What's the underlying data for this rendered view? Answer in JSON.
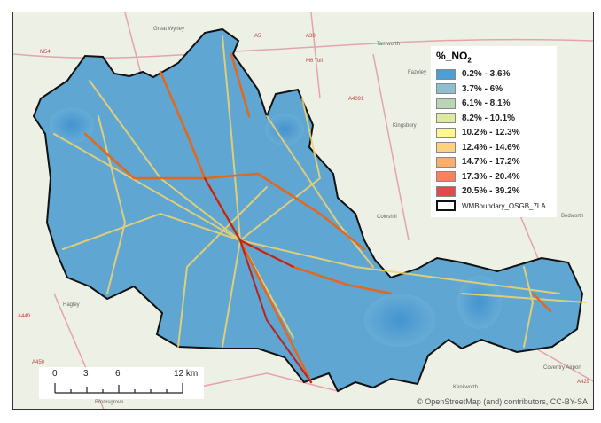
{
  "legend": {
    "title": "%_NO",
    "title_subscript": "2",
    "items": [
      {
        "label": "0.2% - 3.6%",
        "color": "#4d9ed6"
      },
      {
        "label": "3.7% - 6%",
        "color": "#8dbfd0"
      },
      {
        "label": "6.1% - 8.1%",
        "color": "#b9d6b4"
      },
      {
        "label": "8.2% - 10.1%",
        "color": "#dfe9a2"
      },
      {
        "label": "10.2% - 12.3%",
        "color": "#fdf98e"
      },
      {
        "label": "12.4% - 14.6%",
        "color": "#fdd27d"
      },
      {
        "label": "14.7% - 17.2%",
        "color": "#fcae6e"
      },
      {
        "label": "17.3% - 20.4%",
        "color": "#f5845e"
      },
      {
        "label": "20.5% - 39.2%",
        "color": "#e5484d"
      }
    ],
    "boundary_label": "WMBoundary_OSGB_7LA"
  },
  "scale_bar": {
    "labels": [
      "0",
      "3",
      "6",
      "12 km"
    ]
  },
  "attribution": "© OpenStreetMap (and) contributors, CC-BY-SA",
  "towns": [
    "Great Wyrley",
    "Tamworth",
    "Fazeley",
    "Kingsbury",
    "Coleshill",
    "Bedworth",
    "Hagley",
    "Bromsgrove",
    "Kenilworth",
    "Coventry Airport"
  ],
  "road_labels": [
    "M54",
    "A5",
    "M6 Toll",
    "A38",
    "A4091",
    "A449",
    "A450",
    "A429"
  ]
}
